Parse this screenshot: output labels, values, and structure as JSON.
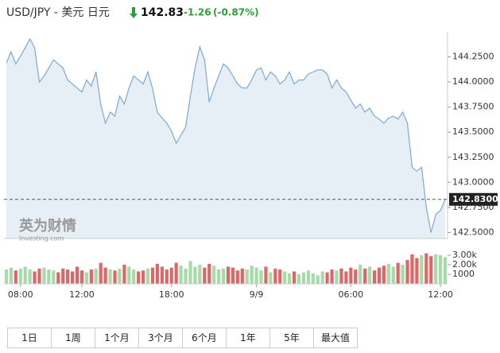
{
  "header": {
    "symbol": "USD/JPY - 美元 日元",
    "price": "142.83",
    "change": "-1.26",
    "change_pct": "(-0.87%)"
  },
  "watermark": {
    "cn": "英为财情",
    "en": "Investing.com"
  },
  "chart_data": {
    "type": "line",
    "ylim": [
      142.44,
      144.5
    ],
    "yticks": [
      {
        "value": 144.25,
        "label": "144.2500"
      },
      {
        "value": 144.0,
        "label": "144.0000"
      },
      {
        "value": 143.75,
        "label": "143.7500"
      },
      {
        "value": 143.5,
        "label": "143.5000"
      },
      {
        "value": 143.25,
        "label": "143.2500"
      },
      {
        "value": 143.0,
        "label": "143.0000"
      },
      {
        "value": 142.75,
        "label": "142.7500"
      },
      {
        "value": 142.5,
        "label": "142.5000"
      }
    ],
    "xlim": [
      -0.5,
      93.5
    ],
    "xticks": [
      {
        "value": 3,
        "label": "08:00"
      },
      {
        "value": 16,
        "label": "12:00"
      },
      {
        "value": 35,
        "label": "18:00"
      },
      {
        "value": 53,
        "label": "9/9"
      },
      {
        "value": 73,
        "label": "06:00"
      },
      {
        "value": 92,
        "label": "12:00"
      }
    ],
    "current": {
      "value": 142.83,
      "label": "142.8300"
    },
    "series": [
      {
        "color": "#7ea9d1",
        "values": [
          144.19,
          144.3,
          144.18,
          144.26,
          144.34,
          144.43,
          144.34,
          144.0,
          144.06,
          144.14,
          144.22,
          144.18,
          144.14,
          144.02,
          143.98,
          143.94,
          143.9,
          144.02,
          143.96,
          144.1,
          143.78,
          143.59,
          143.7,
          143.66,
          143.86,
          143.78,
          143.94,
          144.06,
          144.02,
          143.98,
          144.1,
          143.93,
          143.7,
          143.64,
          143.59,
          143.51,
          143.39,
          143.47,
          143.55,
          143.86,
          144.14,
          144.35,
          144.22,
          143.8,
          143.94,
          144.06,
          144.18,
          144.14,
          144.06,
          143.98,
          143.94,
          143.94,
          144.02,
          144.12,
          144.14,
          144.02,
          144.1,
          144.06,
          143.98,
          144.02,
          144.1,
          143.98,
          144.02,
          144.02,
          144.08,
          144.1,
          144.12,
          144.12,
          144.08,
          143.94,
          144.02,
          143.94,
          143.9,
          143.82,
          143.74,
          143.78,
          143.7,
          143.74,
          143.66,
          143.63,
          143.59,
          143.64,
          143.66,
          143.63,
          143.7,
          143.59,
          143.15,
          143.11,
          143.15,
          142.75,
          142.5,
          142.68,
          142.72,
          142.83
        ]
      }
    ],
    "volume": {
      "ylim": [
        0,
        3250
      ],
      "yticks": [
        {
          "value": 3000,
          "label": "3.00k"
        },
        {
          "value": 2000,
          "label": "2.00k"
        },
        1000
      ],
      "values": [
        1500,
        1700,
        1400,
        1600,
        1800,
        1500,
        1300,
        1600,
        1700,
        1500,
        1400,
        1200,
        1600,
        1500,
        1300,
        1800,
        1400,
        1200,
        1500,
        1600,
        2200,
        1700,
        1500,
        1400,
        1600,
        2000,
        1800,
        1500,
        1300,
        1400,
        1600,
        1700,
        2100,
        1800,
        1500,
        1700,
        2200,
        1900,
        1600,
        2400,
        1800,
        2000,
        1700,
        2100,
        1900,
        1500,
        1600,
        1800,
        1700,
        1400,
        1600,
        1500,
        1900,
        1700,
        1400,
        1800,
        1200,
        1600,
        1500,
        1300,
        1100,
        1300,
        1000,
        1200,
        1400,
        1100,
        900,
        1300,
        1200,
        1500,
        1400,
        1600,
        1300,
        1700,
        1500,
        2000,
        1600,
        1800,
        1400,
        1700,
        1900,
        2100,
        1800,
        2200,
        2000,
        2500,
        3100,
        2700,
        3000,
        3200,
        2900,
        3100,
        3000,
        2800
      ],
      "colors": [
        "#a6dba9",
        "#a6dba9",
        "#e06666",
        "#a6dba9",
        "#a6dba9",
        "#a6dba9",
        "#e06666",
        "#e06666",
        "#a6dba9",
        "#a6dba9",
        "#a6dba9",
        "#e06666",
        "#e06666",
        "#e06666",
        "#e06666",
        "#e06666",
        "#e06666",
        "#a6dba9",
        "#e06666",
        "#a6dba9",
        "#e06666",
        "#e06666",
        "#a6dba9",
        "#e06666",
        "#a6dba9",
        "#e06666",
        "#a6dba9",
        "#a6dba9",
        "#e06666",
        "#e06666",
        "#a6dba9",
        "#e06666",
        "#e06666",
        "#e06666",
        "#e06666",
        "#e06666",
        "#e06666",
        "#a6dba9",
        "#a6dba9",
        "#a6dba9",
        "#a6dba9",
        "#a6dba9",
        "#e06666",
        "#e06666",
        "#a6dba9",
        "#a6dba9",
        "#a6dba9",
        "#e06666",
        "#e06666",
        "#e06666",
        "#e06666",
        "#a6dba9",
        "#a6dba9",
        "#a6dba9",
        "#a6dba9",
        "#e06666",
        "#a6dba9",
        "#e06666",
        "#e06666",
        "#a6dba9",
        "#a6dba9",
        "#e06666",
        "#a6dba9",
        "#a6dba9",
        "#a6dba9",
        "#a6dba9",
        "#a6dba9",
        "#a6dba9",
        "#e06666",
        "#e06666",
        "#a6dba9",
        "#e06666",
        "#e06666",
        "#e06666",
        "#e06666",
        "#a6dba9",
        "#e06666",
        "#a6dba9",
        "#e06666",
        "#e06666",
        "#e06666",
        "#a6dba9",
        "#a6dba9",
        "#e06666",
        "#a6dba9",
        "#e06666",
        "#e06666",
        "#e06666",
        "#a6dba9",
        "#e06666",
        "#e06666",
        "#a6dba9",
        "#a6dba9",
        "#a6dba9"
      ]
    }
  },
  "ranges": [
    "1日",
    "1周",
    "1个月",
    "3个月",
    "6个月",
    "1年",
    "5年",
    "最大值"
  ]
}
